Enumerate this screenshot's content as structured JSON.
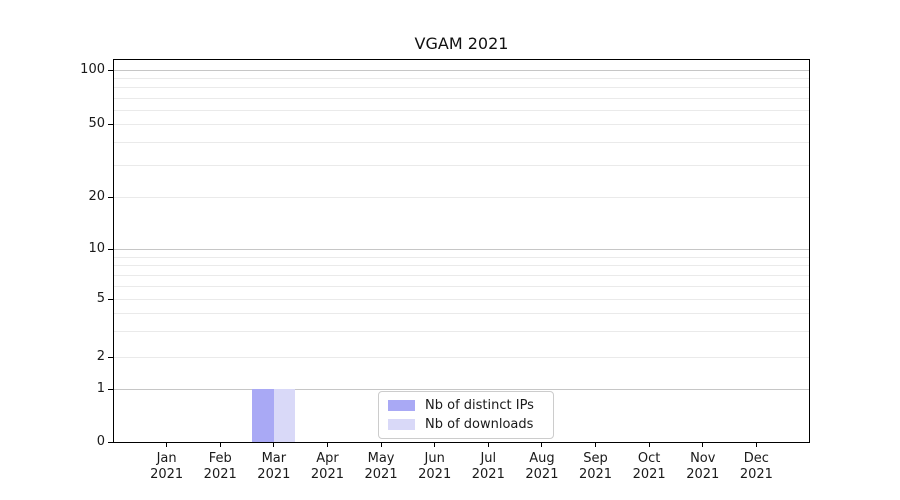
{
  "chart_data": {
    "type": "bar",
    "title": "VGAM 2021",
    "x_categories": [
      "Jan 2021",
      "Feb 2021",
      "Mar 2021",
      "Apr 2021",
      "May 2021",
      "Jun 2021",
      "Jul 2021",
      "Aug 2021",
      "Sep 2021",
      "Oct 2021",
      "Nov 2021",
      "Dec 2021"
    ],
    "series": [
      {
        "name": "Nb of distinct IPs",
        "color": "#a9a9f5",
        "values": [
          0,
          0,
          1,
          0,
          0,
          0,
          0,
          0,
          0,
          0,
          0,
          0
        ]
      },
      {
        "name": "Nb of downloads",
        "color": "#d9d9f8",
        "values": [
          0,
          0,
          1,
          0,
          0,
          0,
          0,
          0,
          0,
          0,
          0,
          0
        ]
      }
    ],
    "yscale": "symlog",
    "ylim": [
      0,
      110
    ],
    "ytick_values": [
      0,
      1,
      2,
      5,
      10,
      20,
      50,
      100
    ],
    "ytick_labels": [
      "0",
      "1",
      "2",
      "5",
      "10",
      "20",
      "50",
      "100"
    ],
    "grid": "on",
    "legend_position": "lower center",
    "colors": {
      "grid_major": "#c6c6c6",
      "grid_minor": "#eaeaea",
      "spine": "#000000",
      "text": "#1a1a1a",
      "legend_border": "#cccccc",
      "background": "#ffffff"
    }
  }
}
